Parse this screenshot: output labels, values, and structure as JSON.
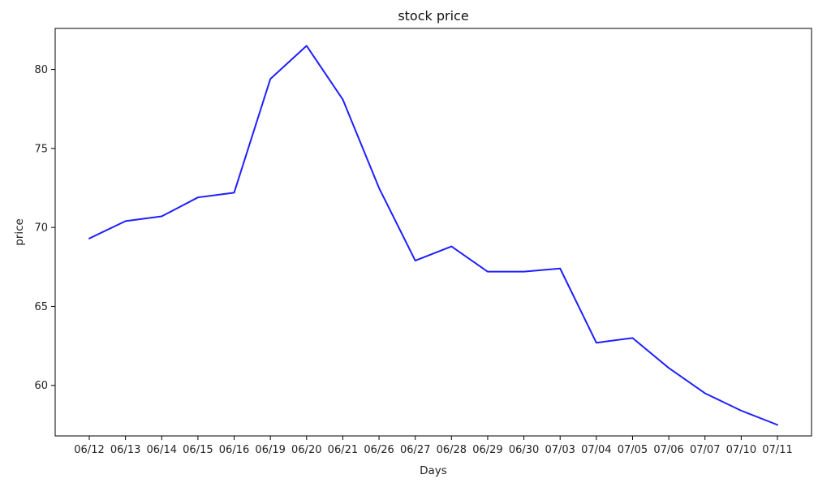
{
  "chart_data": {
    "type": "line",
    "title": "stock price",
    "xlabel": "Days",
    "ylabel": "price",
    "categories": [
      "06/12",
      "06/13",
      "06/14",
      "06/15",
      "06/16",
      "06/19",
      "06/20",
      "06/21",
      "06/26",
      "06/27",
      "06/28",
      "06/29",
      "06/30",
      "07/03",
      "07/04",
      "07/05",
      "07/06",
      "07/07",
      "07/10",
      "07/11"
    ],
    "series": [
      {
        "values": [
          69.3,
          70.4,
          70.7,
          71.9,
          72.2,
          79.4,
          81.5,
          78.1,
          72.5,
          67.9,
          68.8,
          67.2,
          67.2,
          67.4,
          62.7,
          63.0,
          61.1,
          59.5,
          58.4,
          57.5
        ],
        "color": "#1f1fff"
      }
    ],
    "ylim": [
      56.8,
      82.6
    ],
    "yticks": [
      60,
      65,
      70,
      75,
      80
    ],
    "grid": false,
    "legend": "none"
  }
}
